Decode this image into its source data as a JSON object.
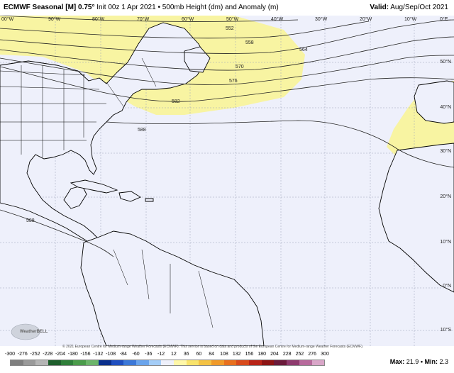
{
  "header": {
    "model": "ECMWF Seasonal [M] 0.75°",
    "init": "Init 00z 1 Apr 2021",
    "product": "500mb Height (dm) and Anomaly (m)",
    "valid_label": "Valid:",
    "valid_value": "Aug/Sep/Oct 2021"
  },
  "longitude_labels": [
    "90°W",
    "80°W",
    "70°W",
    "60°W",
    "50°W",
    "40°W",
    "30°W",
    "20°W",
    "10°W",
    "0°E"
  ],
  "latitude_labels": [
    "50°N",
    "40°N",
    "30°N",
    "20°N",
    "10°N",
    "0°N",
    "10°S"
  ],
  "contours": [
    {
      "label": "552"
    },
    {
      "label": "558"
    },
    {
      "label": "564"
    },
    {
      "label": "570"
    },
    {
      "label": "576"
    },
    {
      "label": "582"
    },
    {
      "label": "588"
    },
    {
      "label": "588"
    }
  ],
  "legend": {
    "ticks": [
      "-300",
      "-276",
      "-252",
      "-228",
      "-204",
      "-180",
      "-156",
      "-132",
      "-108",
      "-84",
      "-60",
      "-36",
      "-12",
      "12",
      "36",
      "60",
      "84",
      "108",
      "132",
      "156",
      "180",
      "204",
      "228",
      "252",
      "276",
      "300"
    ],
    "colors": [
      "#7f7f7f",
      "#9a9a9a",
      "#b5b5b5",
      "#1e5f2c",
      "#2f7f3a",
      "#4b9c4b",
      "#6cb56a",
      "#0a2f8c",
      "#1f4fbf",
      "#3c78d8",
      "#6aa4ec",
      "#a4cdf7",
      "#eef0fb",
      "#fff7a8",
      "#f9e36b",
      "#f4c244",
      "#f09a2a",
      "#e8701e",
      "#d84a1c",
      "#b82418",
      "#8c1414",
      "#6a1a3a",
      "#8e3a6e",
      "#b76a9c",
      "#d9a6c8"
    ],
    "max_label": "Max:",
    "max_value": "21.9",
    "min_label": "Min:",
    "min_value": "2.3"
  },
  "copyright": "© 2021 European Centre for Medium-range Weather Forecasts (ECMWF). This service is based on data and products of the European Centre for Medium-range Weather Forecasts (ECMWF).",
  "logo_text": "WeatherBELL",
  "colors": {
    "anomaly_fill": "#f8f4a2",
    "ocean": "#eef0fb",
    "land_line": "#000000"
  }
}
